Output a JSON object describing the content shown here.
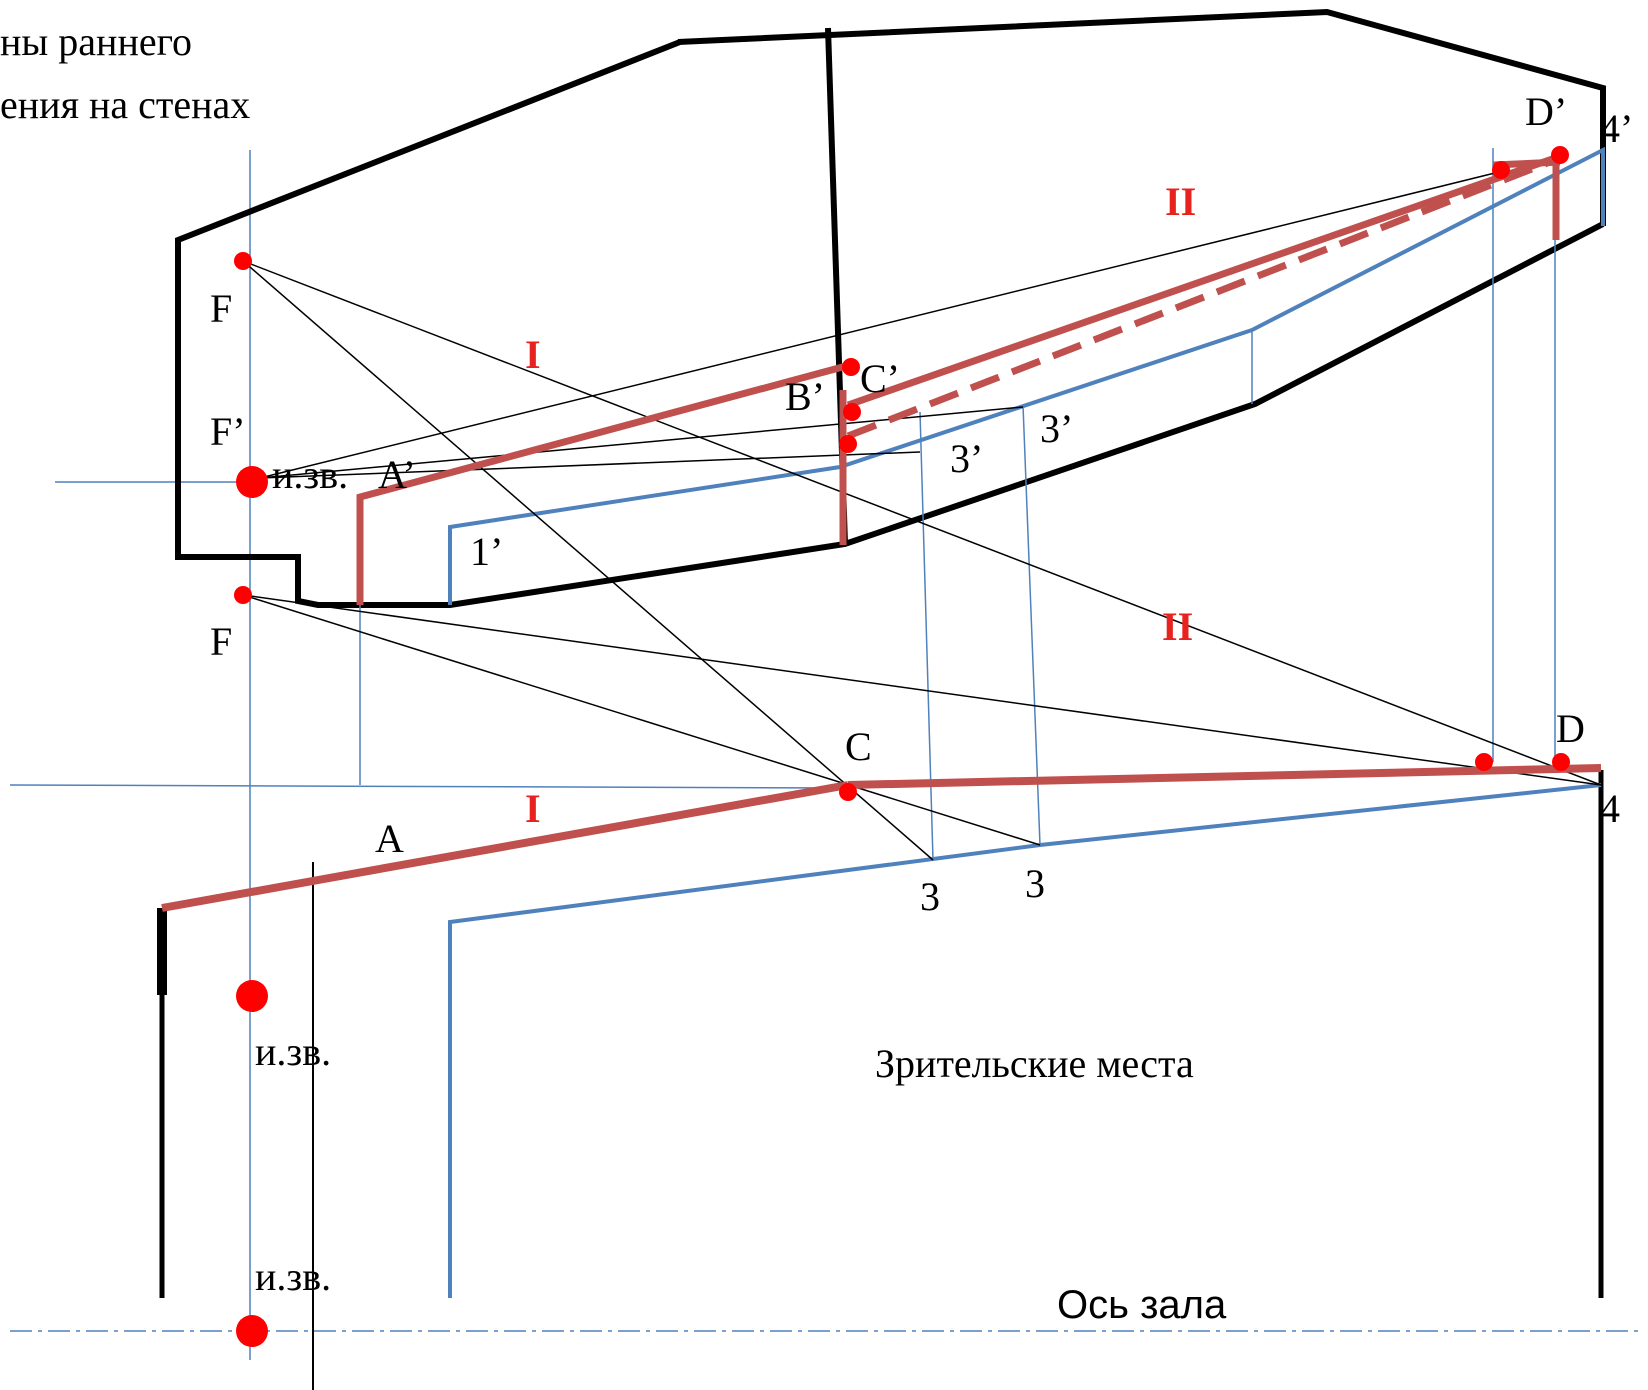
{
  "title_lines": [
    "ны раннего",
    "ения на стенах"
  ],
  "labels": {
    "F_top": "F",
    "F_prime": "F’",
    "F_bottom": "F",
    "source_upper": "и.зв.",
    "A_prime": "A’",
    "B_prime": "B’",
    "C_prime": "C’",
    "D_prime": "D’",
    "four_prime": "4’",
    "one_prime": "1’",
    "three_prime_a": "3’",
    "three_prime_b": "3’",
    "C": "C",
    "D": "D",
    "four": "4",
    "A": "A",
    "three_a": "3",
    "three_b": "3",
    "source_1": "и.зв.",
    "source_2": "и.зв.",
    "seating": "Зрительские места",
    "hall_axis": "Ось зала"
  },
  "zones": {
    "I_upper": "I",
    "II_upper": "II",
    "I_lower": "I",
    "II_lower": "II"
  },
  "colors": {
    "outline": "#000000",
    "reflection": "#c0504d",
    "construction_blue": "#4f81bd",
    "points": "#ff0000",
    "zone_text": "#e8231f"
  }
}
